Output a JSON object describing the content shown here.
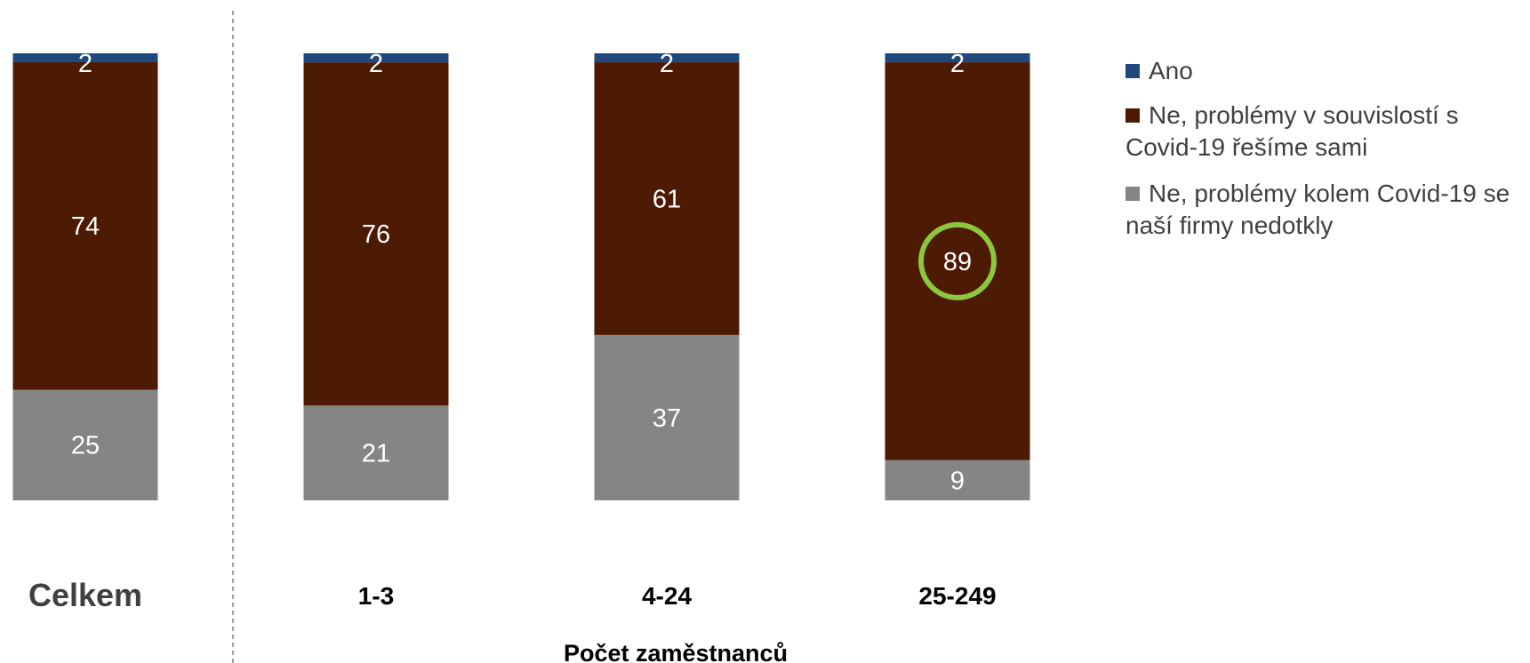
{
  "chart_data": {
    "type": "bar",
    "stacked": true,
    "categories": [
      "Celkem",
      "1-3",
      "4-24",
      "25-249"
    ],
    "xlabel": "Počet zaměstnanců",
    "ylim": [
      0,
      100
    ],
    "series": [
      {
        "name": "Ne, problémy kolem Covid-19 se naší firmy nedotkly",
        "color": "#858585",
        "values": [
          25,
          21,
          37,
          9
        ]
      },
      {
        "name": "Ne, problémy v souvislostí s Covid-19 řešíme sami",
        "color": "#4d1a03",
        "values": [
          74,
          76,
          61,
          89
        ]
      },
      {
        "name": "Ano",
        "color": "#1f497d",
        "values": [
          2,
          2,
          2,
          2
        ]
      }
    ],
    "highlight": {
      "category": "25-249",
      "series": "Ne, problémy v souvislostí s Covid-19 řešíme sami",
      "value": 89,
      "color": "#8dc63f"
    },
    "legend_position": "right"
  }
}
